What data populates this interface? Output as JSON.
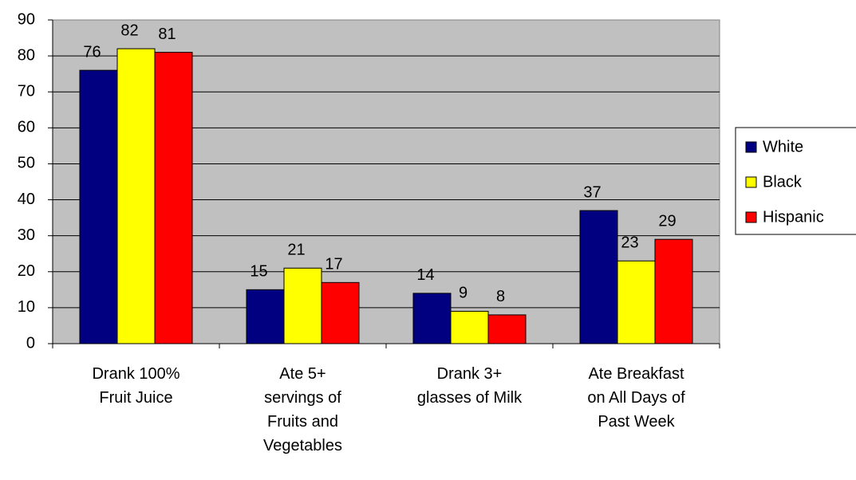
{
  "chart_data": {
    "type": "bar",
    "categories": [
      "Drank 100%\nFruit Juice",
      "Ate 5+\nservings of\nFruits and\nVegetables",
      "Drank 3+\nglasses of Milk",
      "Ate Breakfast\non All Days of\nPast Week"
    ],
    "series": [
      {
        "name": "White",
        "color": "#000080",
        "values": [
          76,
          15,
          14,
          37
        ]
      },
      {
        "name": "Black",
        "color": "#ffff00",
        "values": [
          82,
          21,
          9,
          23
        ]
      },
      {
        "name": "Hispanic",
        "color": "#ff0000",
        "values": [
          81,
          17,
          8,
          29
        ]
      }
    ],
    "ylim": [
      0,
      90
    ],
    "yticks": [
      0,
      10,
      20,
      30,
      40,
      50,
      60,
      70,
      80,
      90
    ],
    "grid": true,
    "legend": "right",
    "plot_background": "#c0c0c0"
  }
}
